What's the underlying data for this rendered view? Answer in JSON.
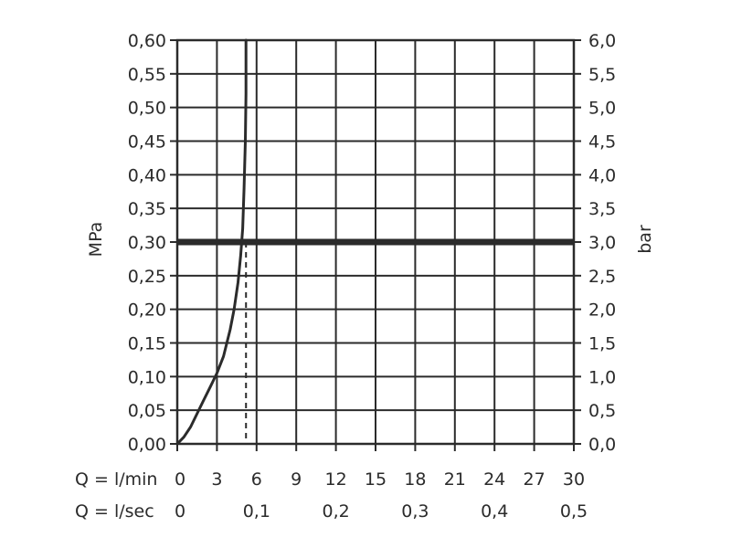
{
  "chart_data": {
    "type": "line",
    "title": "",
    "grid": true,
    "ylabel_left": "MPa",
    "ylabel_right": "bar",
    "ylim": [
      0,
      0.6
    ],
    "y_ticks_left": [
      "0,00",
      "0,05",
      "0,10",
      "0,15",
      "0,20",
      "0,25",
      "0,30",
      "0,35",
      "0,40",
      "0,45",
      "0,50",
      "0,55",
      "0,60"
    ],
    "y_ticks_right": [
      "0,0",
      "0,5",
      "1,0",
      "1,5",
      "2,0",
      "2,5",
      "3,0",
      "3,5",
      "4,0",
      "4,5",
      "5,0",
      "5,5",
      "6,0"
    ],
    "xlim": [
      0,
      30
    ],
    "x_row_lmin": {
      "label": "Q = l/min",
      "ticks": [
        "0",
        "3",
        "6",
        "9",
        "12",
        "15",
        "18",
        "21",
        "24",
        "27",
        "30"
      ],
      "values": [
        0,
        3,
        6,
        9,
        12,
        15,
        18,
        21,
        24,
        27,
        30
      ]
    },
    "x_row_lsec": {
      "label": "Q = l/sec",
      "ticks": [
        "0",
        "0,1",
        "0,2",
        "0,3",
        "0,4",
        "0,5"
      ],
      "values": [
        0,
        6,
        12,
        18,
        24,
        30
      ]
    },
    "series": [
      {
        "x": [
          0,
          0.5,
          1,
          1.5,
          2,
          2.5,
          3,
          3.5,
          4,
          4.3,
          4.6,
          4.8,
          4.95,
          5.05,
          5.15,
          5.2,
          5.2
        ],
        "y": [
          0,
          0.01,
          0.025,
          0.045,
          0.065,
          0.085,
          0.105,
          0.13,
          0.17,
          0.2,
          0.24,
          0.28,
          0.32,
          0.38,
          0.45,
          0.52,
          0.6
        ],
        "color": "#2b2b2b"
      }
    ],
    "reference_line": {
      "y": 0.3,
      "color": "#2b2b2b"
    },
    "reference_drop": {
      "x": 5.2,
      "y": 0.3,
      "style": "dashed"
    }
  }
}
